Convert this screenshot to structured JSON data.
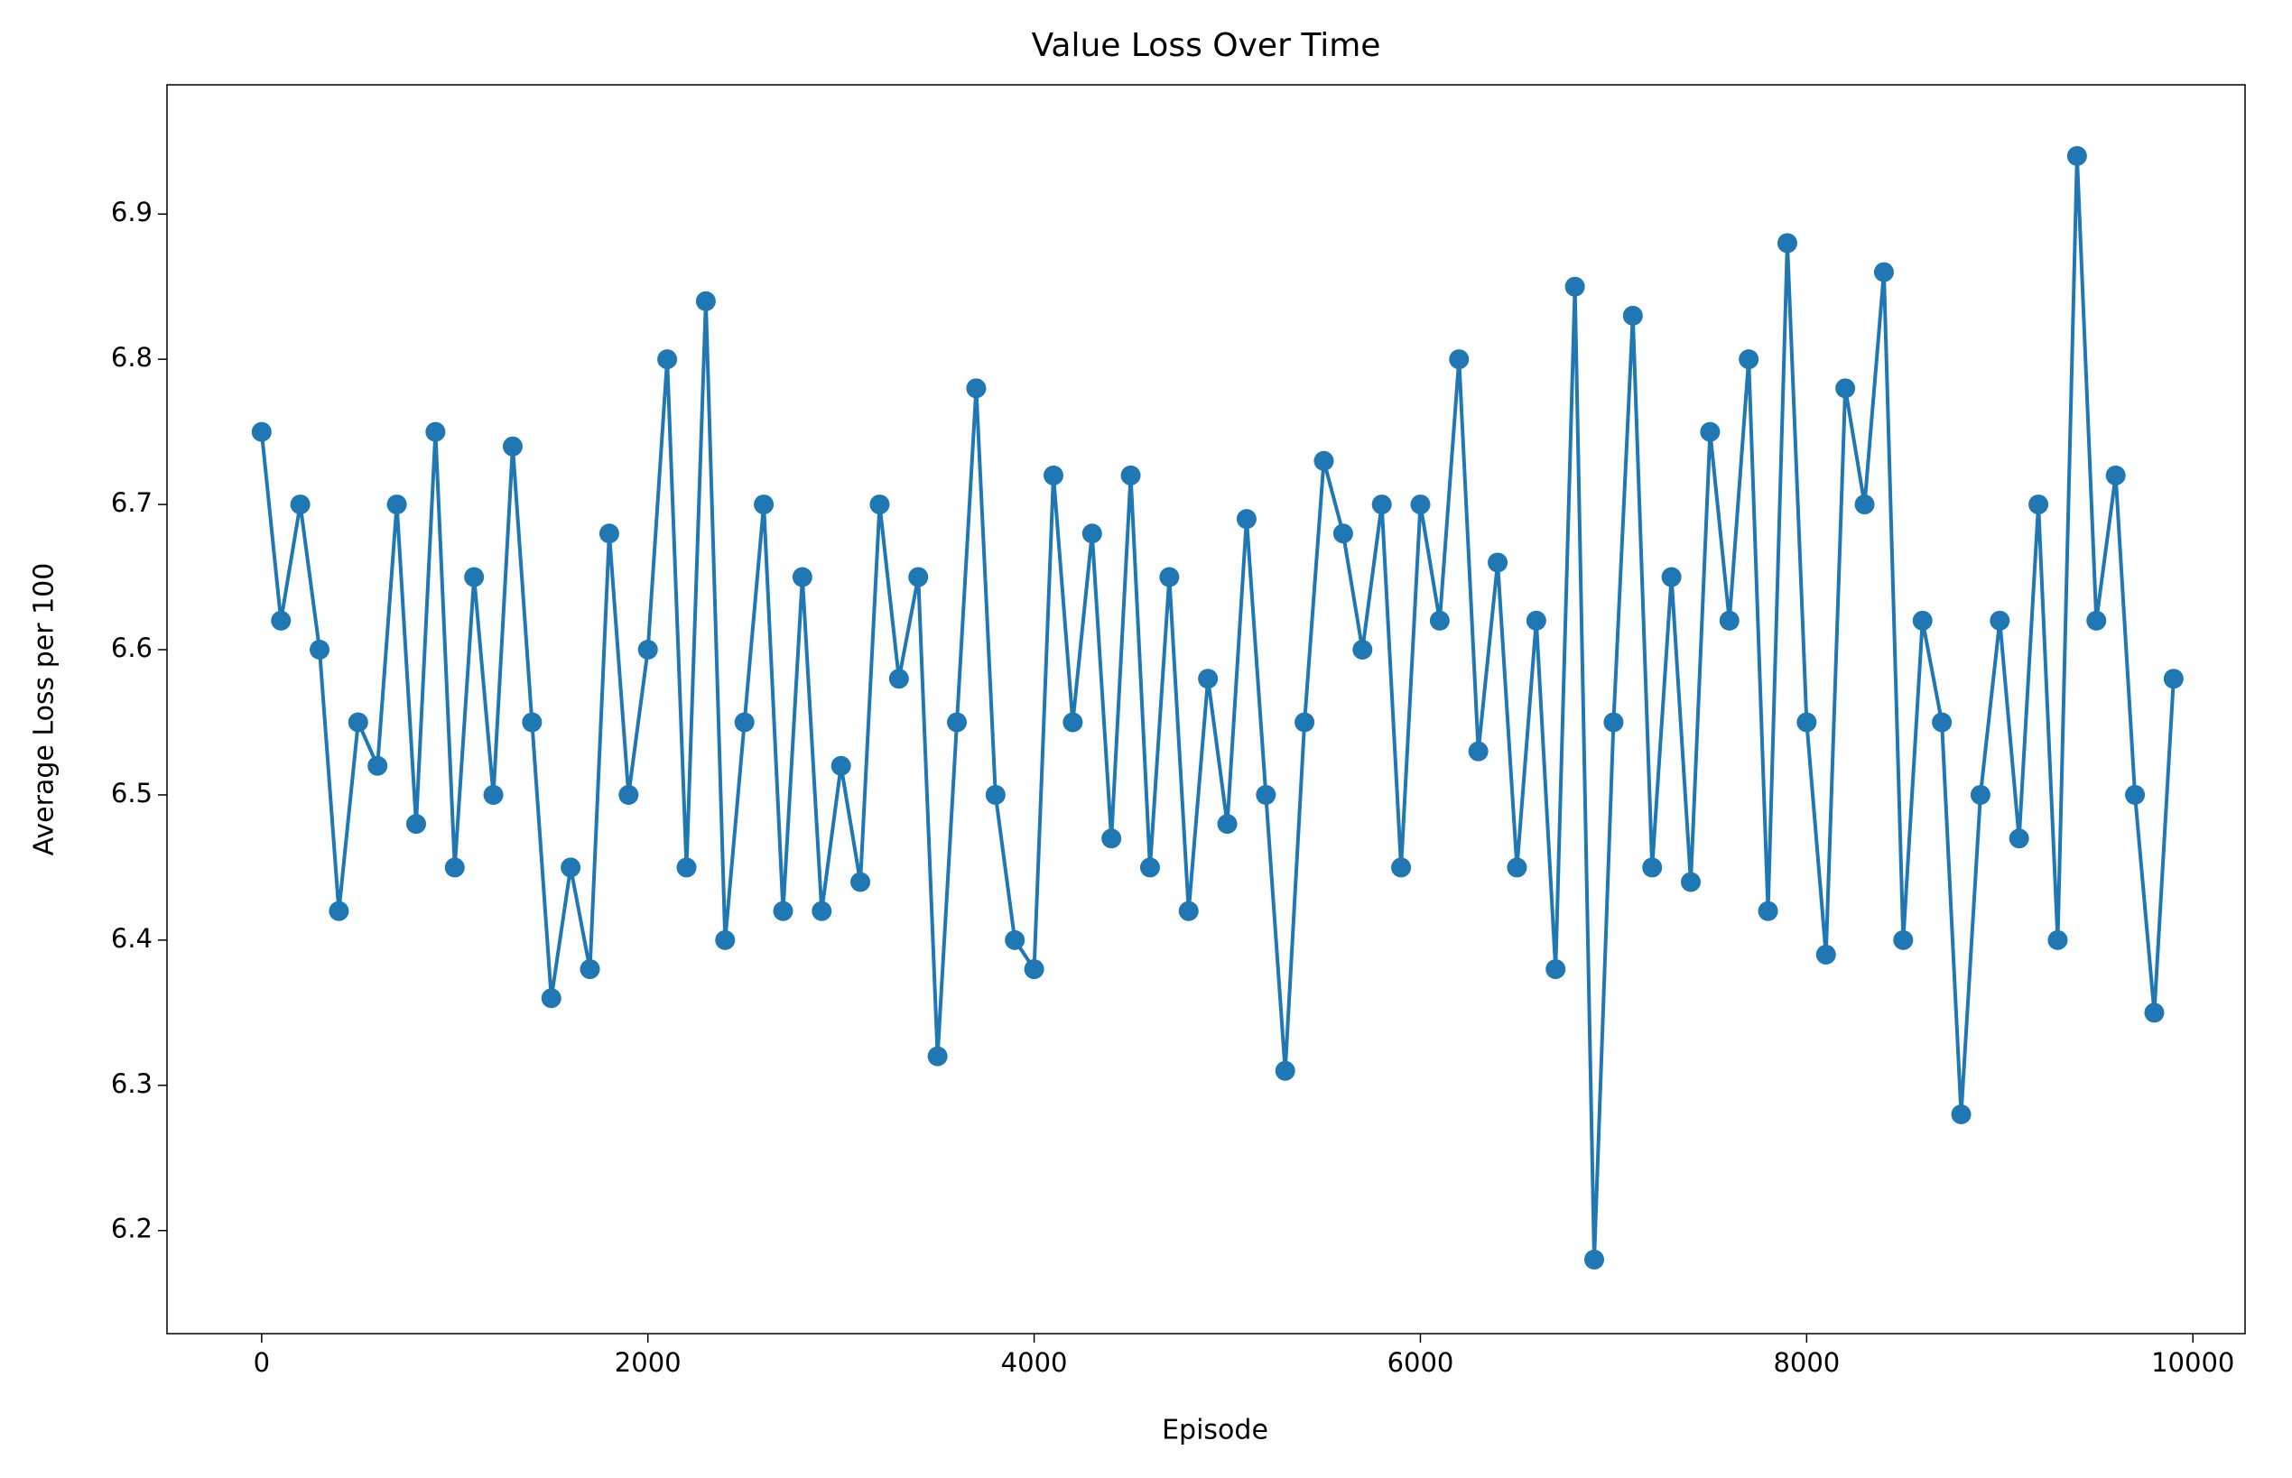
{
  "chart_data": {
    "type": "line",
    "title": "Value Loss Over Time",
    "x_label": "Episode",
    "y_label": "Average Loss per 100",
    "color": "#1f77b4",
    "markers": true,
    "x": [
      0,
      100,
      200,
      300,
      400,
      500,
      600,
      700,
      800,
      900,
      1000,
      1100,
      1200,
      1300,
      1400,
      1500,
      1600,
      1700,
      1800,
      1900,
      2000,
      2100,
      2200,
      2300,
      2400,
      2500,
      2600,
      2700,
      2800,
      2900,
      3000,
      3100,
      3200,
      3300,
      3400,
      3500,
      3600,
      3700,
      3800,
      3900,
      4000,
      4100,
      4200,
      4300,
      4400,
      4500,
      4600,
      4700,
      4800,
      4900,
      5000,
      5100,
      5200,
      5300,
      5400,
      5500,
      5600,
      5700,
      5800,
      5900,
      6000,
      6100,
      6200,
      6300,
      6400,
      6500,
      6600,
      6700,
      6800,
      6900,
      7000,
      7100,
      7200,
      7300,
      7400,
      7500,
      7600,
      7700,
      7800,
      7900,
      8000,
      8100,
      8200,
      8300,
      8400,
      8500,
      8600,
      8700,
      8800,
      8900,
      9000,
      9100,
      9200,
      9300,
      9400,
      9500,
      9600,
      9700,
      9800,
      9900
    ],
    "values": [
      6.75,
      6.62,
      6.7,
      6.6,
      6.42,
      6.55,
      6.52,
      6.7,
      6.48,
      6.75,
      6.45,
      6.65,
      6.5,
      6.74,
      6.55,
      6.36,
      6.45,
      6.38,
      6.68,
      6.5,
      6.6,
      6.8,
      6.45,
      6.84,
      6.4,
      6.55,
      6.7,
      6.42,
      6.65,
      6.42,
      6.52,
      6.44,
      6.7,
      6.58,
      6.65,
      6.32,
      6.55,
      6.78,
      6.5,
      6.4,
      6.38,
      6.72,
      6.55,
      6.68,
      6.47,
      6.72,
      6.45,
      6.65,
      6.42,
      6.58,
      6.48,
      6.69,
      6.5,
      6.31,
      6.55,
      6.73,
      6.68,
      6.6,
      6.7,
      6.45,
      6.7,
      6.62,
      6.8,
      6.53,
      6.66,
      6.45,
      6.62,
      6.38,
      6.85,
      6.18,
      6.55,
      6.83,
      6.45,
      6.65,
      6.44,
      6.75,
      6.62,
      6.8,
      6.42,
      6.88,
      6.55,
      6.39,
      6.78,
      6.7,
      6.86,
      6.4,
      6.62,
      6.55,
      6.28,
      6.5,
      6.62,
      6.47,
      6.7,
      6.4,
      6.94,
      6.62,
      6.72,
      6.5,
      6.35,
      6.58
    ],
    "xlim": [
      -490,
      10270
    ],
    "ylim": [
      6.129,
      6.989
    ],
    "xticks": [
      0,
      2000,
      4000,
      6000,
      8000,
      10000
    ],
    "yticks": [
      6.2,
      6.3,
      6.4,
      6.5,
      6.6,
      6.7,
      6.8,
      6.9
    ]
  }
}
